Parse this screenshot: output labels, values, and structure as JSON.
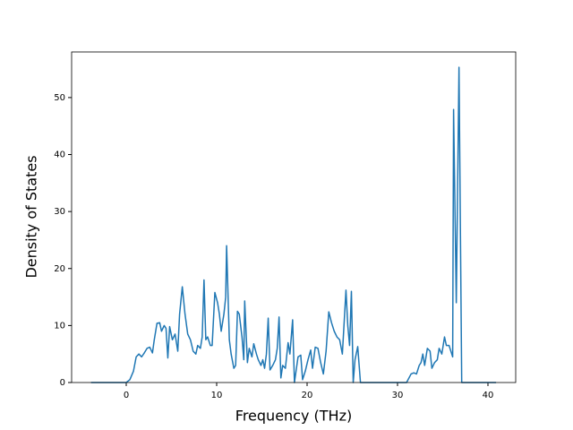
{
  "chart_data": {
    "type": "line",
    "x_label": "Frequency (THz)",
    "y_label": "Density of States",
    "x": [
      -3.9,
      0,
      0.4,
      0.8,
      1.1,
      1.4,
      1.7,
      2.0,
      2.3,
      2.6,
      2.9,
      3.1,
      3.4,
      3.7,
      3.9,
      4.2,
      4.4,
      4.6,
      4.8,
      5.1,
      5.4,
      5.7,
      5.9,
      6.2,
      6.5,
      6.8,
      7.1,
      7.4,
      7.7,
      7.9,
      8.2,
      8.4,
      8.6,
      8.8,
      9.0,
      9.3,
      9.5,
      9.8,
      10.1,
      10.3,
      10.5,
      10.8,
      11.0,
      11.1,
      11.4,
      11.6,
      11.9,
      12.1,
      12.3,
      12.5,
      12.8,
      13.0,
      13.1,
      13.4,
      13.6,
      13.9,
      14.1,
      14.4,
      14.6,
      14.9,
      15.1,
      15.3,
      15.5,
      15.7,
      15.9,
      16.2,
      16.5,
      16.7,
      16.9,
      17.1,
      17.3,
      17.6,
      17.9,
      18.1,
      18.4,
      18.6,
      19.0,
      19.3,
      19.5,
      19.8,
      20.1,
      20.4,
      20.6,
      20.9,
      21.2,
      21.5,
      21.8,
      22.1,
      22.4,
      22.7,
      23.0,
      23.3,
      23.6,
      23.9,
      24.3,
      24.5,
      24.7,
      24.9,
      25.1,
      25.3,
      25.6,
      25.9,
      31.0,
      31.5,
      31.8,
      32.1,
      32.4,
      32.6,
      32.8,
      33.0,
      33.3,
      33.6,
      33.8,
      34.1,
      34.4,
      34.6,
      34.9,
      35.2,
      35.4,
      35.7,
      36.0,
      36.1,
      36.2,
      36.5,
      36.8,
      37.1,
      40.9
    ],
    "series": [
      {
        "color": "#1f77b4",
        "values": [
          0,
          0,
          0.5,
          2,
          4.5,
          5,
          4.5,
          5.2,
          6,
          6.2,
          5.2,
          7.5,
          10.4,
          10.5,
          9,
          10,
          9.5,
          4.3,
          9.8,
          7.5,
          8.5,
          5.5,
          12,
          16.8,
          12,
          8.5,
          7.5,
          5.5,
          5,
          6.5,
          6,
          8,
          18,
          7.5,
          8,
          6.5,
          6.5,
          15.8,
          14,
          12,
          9,
          12,
          15,
          24,
          7.5,
          5,
          2.5,
          3,
          12.5,
          12,
          8,
          4,
          14.3,
          3.5,
          6,
          4.5,
          6.8,
          5,
          4,
          3,
          4,
          2.5,
          5,
          11.3,
          2.2,
          3,
          4,
          6,
          11.5,
          0.8,
          3,
          2.5,
          7,
          5,
          11,
          0,
          4.5,
          4.8,
          0.5,
          2,
          4,
          5.7,
          2.5,
          6.2,
          6,
          3.5,
          1.5,
          5.5,
          12.4,
          10.5,
          9,
          8,
          7.5,
          5,
          16.2,
          10,
          6.5,
          16,
          0,
          4,
          6.3,
          0,
          0,
          1.5,
          1.7,
          1.5,
          3,
          3.5,
          5,
          3,
          6,
          5.5,
          2.5,
          3.5,
          4,
          6,
          5,
          8,
          6.5,
          6.5,
          5,
          4.5,
          47.9,
          14,
          55.3,
          0,
          0
        ]
      }
    ],
    "xlim": [
      -6.04,
      43.07
    ],
    "ylim": [
      0,
      58
    ],
    "xticks": [
      0,
      10,
      20,
      30,
      40
    ],
    "yticks": [
      0,
      10,
      20,
      30,
      40,
      50
    ],
    "grid": false
  }
}
